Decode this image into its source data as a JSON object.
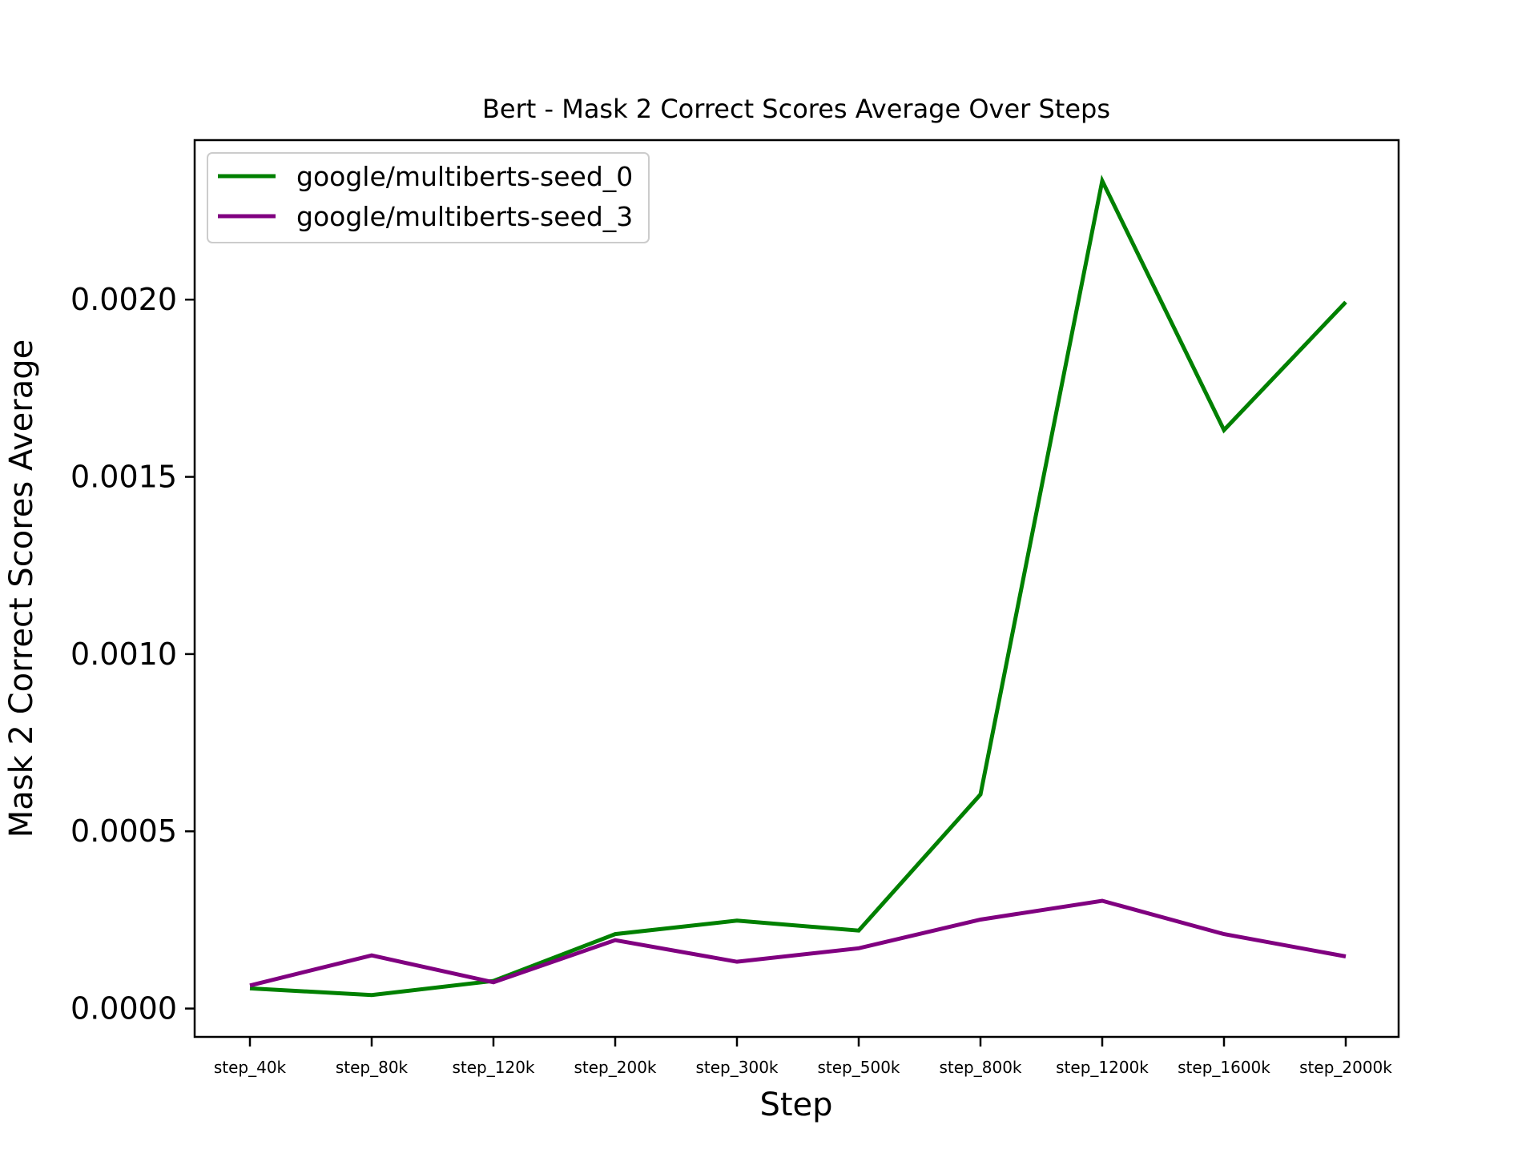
{
  "chart_data": {
    "type": "line",
    "title": "Bert - Mask 2 Correct Scores Average Over Steps",
    "xlabel": "Step",
    "ylabel": "Mask 2 Correct Scores Average",
    "categories": [
      "step_40k",
      "step_80k",
      "step_120k",
      "step_200k",
      "step_300k",
      "step_500k",
      "step_800k",
      "step_1200k",
      "step_1600k",
      "step_2000k"
    ],
    "ylim": [
      -8e-05,
      0.00245
    ],
    "yticks": [
      0.0,
      0.0005,
      0.001,
      0.0015,
      0.002
    ],
    "ytick_labels": [
      "0.0000",
      "0.0005",
      "0.0010",
      "0.0015",
      "0.0020"
    ],
    "grid": false,
    "legend_position": "top-left",
    "series": [
      {
        "name": "google/multiberts-seed_0",
        "color": "#008000",
        "values": [
          5.7e-05,
          3.8e-05,
          7.8e-05,
          0.00021,
          0.000248,
          0.00022,
          0.000604,
          0.002335,
          0.001632,
          0.001993
        ]
      },
      {
        "name": "google/multiberts-seed_3",
        "color": "#800080",
        "values": [
          6.5e-05,
          0.00015,
          7.4e-05,
          0.000193,
          0.000132,
          0.00017,
          0.000251,
          0.000304,
          0.00021,
          0.000147
        ]
      }
    ]
  }
}
